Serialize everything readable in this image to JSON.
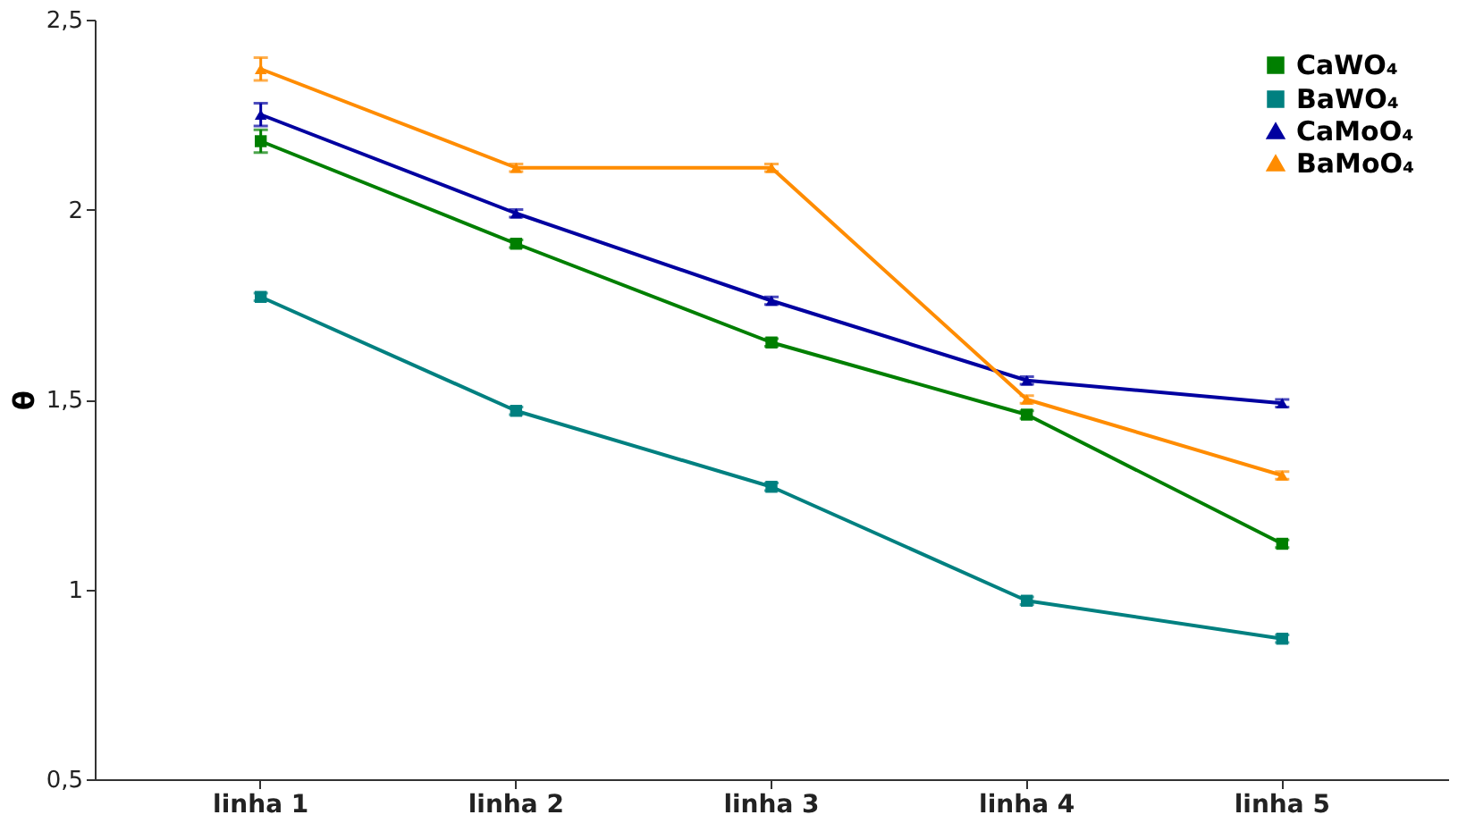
{
  "chart_data": {
    "type": "line",
    "ylabel": "θ",
    "categories": [
      "linha 1",
      "linha 2",
      "linha 3",
      "linha 4",
      "linha 5"
    ],
    "series": [
      {
        "name": "CaWO₄",
        "color": "#007f00",
        "marker": "square",
        "values": [
          2.18,
          1.91,
          1.65,
          1.46,
          1.12
        ],
        "errors": [
          0.03,
          0.01,
          0.01,
          0.01,
          0.01
        ]
      },
      {
        "name": "BaWO₄",
        "color": "#008080",
        "marker": "square",
        "values": [
          1.77,
          1.47,
          1.27,
          0.97,
          0.87
        ],
        "errors": [
          0.01,
          0.01,
          0.01,
          0.01,
          0.01
        ]
      },
      {
        "name": "CaMoO₄",
        "color": "#0000a0",
        "marker": "triangle",
        "values": [
          2.25,
          1.99,
          1.76,
          1.55,
          1.49
        ],
        "errors": [
          0.03,
          0.01,
          0.01,
          0.01,
          0.01
        ]
      },
      {
        "name": "BaMoO₄",
        "color": "#ff8c00",
        "marker": "triangle",
        "values": [
          2.37,
          2.11,
          2.11,
          1.5,
          1.3
        ],
        "errors": [
          0.03,
          0.01,
          0.01,
          0.01,
          0.01
        ]
      }
    ],
    "ylim": [
      0.5,
      2.5
    ],
    "yticks": [
      {
        "value": 0.5,
        "label": "0,5"
      },
      1,
      {
        "value": 1.5,
        "label": "1,5"
      },
      2,
      {
        "value": 2.5,
        "label": "2,5"
      }
    ],
    "grid": false,
    "legend": "top right",
    "line_style": "solid"
  }
}
